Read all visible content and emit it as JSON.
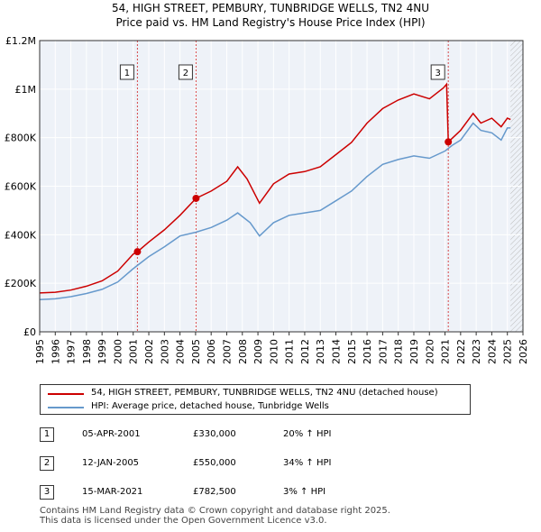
{
  "title": {
    "line1": "54, HIGH STREET, PEMBURY, TUNBRIDGE WELLS, TN2 4NU",
    "line2": "Price paid vs. HM Land Registry's House Price Index (HPI)"
  },
  "colors": {
    "property": "#cc0000",
    "hpi": "#6699cc",
    "grid": "#dddddd",
    "background": "#eef2f8",
    "marker": "#cc0000"
  },
  "chart_data": {
    "type": "line",
    "xlim": [
      1995,
      2026
    ],
    "ylim": [
      0,
      1200000
    ],
    "x_ticks": [
      "1995",
      "1996",
      "1997",
      "1998",
      "1999",
      "2000",
      "2001",
      "2002",
      "2003",
      "2004",
      "2005",
      "2006",
      "2007",
      "2008",
      "2009",
      "2010",
      "2011",
      "2012",
      "2013",
      "2014",
      "2015",
      "2016",
      "2017",
      "2018",
      "2019",
      "2020",
      "2021",
      "2022",
      "2023",
      "2024",
      "2025",
      "2026"
    ],
    "y_ticks": [
      {
        "value": 0,
        "label": "£0"
      },
      {
        "value": 200000,
        "label": "£200K"
      },
      {
        "value": 400000,
        "label": "£400K"
      },
      {
        "value": 600000,
        "label": "£600K"
      },
      {
        "value": 800000,
        "label": "£800K"
      },
      {
        "value": 1000000,
        "label": "£1M"
      },
      {
        "value": 1200000,
        "label": "£1.2M"
      }
    ],
    "series": [
      {
        "name": "54, HIGH STREET, PEMBURY, TUNBRIDGE WELLS, TN2 4NU (detached house)",
        "color": "#cc0000",
        "points": [
          [
            1995,
            160000
          ],
          [
            1996,
            163000
          ],
          [
            1997,
            172000
          ],
          [
            1998,
            188000
          ],
          [
            1999,
            210000
          ],
          [
            2000,
            250000
          ],
          [
            2001,
            320000
          ],
          [
            2001.27,
            330000
          ],
          [
            2002,
            370000
          ],
          [
            2003,
            420000
          ],
          [
            2004,
            480000
          ],
          [
            2005.03,
            550000
          ],
          [
            2006,
            580000
          ],
          [
            2007,
            620000
          ],
          [
            2007.7,
            680000
          ],
          [
            2008.3,
            630000
          ],
          [
            2009.1,
            530000
          ],
          [
            2010,
            610000
          ],
          [
            2011,
            650000
          ],
          [
            2012,
            660000
          ],
          [
            2013,
            680000
          ],
          [
            2014,
            730000
          ],
          [
            2015,
            780000
          ],
          [
            2016,
            860000
          ],
          [
            2017,
            920000
          ],
          [
            2018,
            955000
          ],
          [
            2019,
            980000
          ],
          [
            2020,
            960000
          ],
          [
            2020.9,
            1005000
          ],
          [
            2021.1,
            1020000
          ],
          [
            2021.21,
            782500
          ],
          [
            2022,
            830000
          ],
          [
            2022.8,
            900000
          ],
          [
            2023.3,
            860000
          ],
          [
            2024,
            880000
          ],
          [
            2024.6,
            845000
          ],
          [
            2025,
            880000
          ],
          [
            2025.2,
            875000
          ]
        ]
      },
      {
        "name": "HPI: Average price, detached house, Tunbridge Wells",
        "color": "#6699cc",
        "points": [
          [
            1995,
            133000
          ],
          [
            1996,
            136000
          ],
          [
            1997,
            145000
          ],
          [
            1998,
            158000
          ],
          [
            1999,
            175000
          ],
          [
            2000,
            205000
          ],
          [
            2001,
            260000
          ],
          [
            2002,
            310000
          ],
          [
            2003,
            350000
          ],
          [
            2004,
            395000
          ],
          [
            2005,
            410000
          ],
          [
            2006,
            430000
          ],
          [
            2007,
            460000
          ],
          [
            2007.7,
            490000
          ],
          [
            2008.5,
            450000
          ],
          [
            2009.1,
            395000
          ],
          [
            2010,
            450000
          ],
          [
            2011,
            480000
          ],
          [
            2012,
            490000
          ],
          [
            2013,
            500000
          ],
          [
            2014,
            540000
          ],
          [
            2015,
            580000
          ],
          [
            2016,
            640000
          ],
          [
            2017,
            690000
          ],
          [
            2018,
            710000
          ],
          [
            2019,
            725000
          ],
          [
            2020,
            715000
          ],
          [
            2021,
            745000
          ],
          [
            2021.5,
            770000
          ],
          [
            2022,
            790000
          ],
          [
            2022.8,
            860000
          ],
          [
            2023.3,
            830000
          ],
          [
            2024,
            820000
          ],
          [
            2024.6,
            790000
          ],
          [
            2025,
            840000
          ],
          [
            2025.2,
            840000
          ]
        ]
      }
    ],
    "sales": [
      {
        "label": "1",
        "x": 2001.27,
        "value": 330000
      },
      {
        "label": "2",
        "x": 2005.03,
        "value": 550000
      },
      {
        "label": "3",
        "x": 2021.21,
        "value": 782500
      }
    ],
    "hatch_from": 2025.2
  },
  "legend": {
    "property_label": "54, HIGH STREET, PEMBURY, TUNBRIDGE WELLS, TN2 4NU (detached house)",
    "hpi_label": "HPI: Average price, detached house, Tunbridge Wells"
  },
  "sales_table": [
    {
      "num": "1",
      "date": "05-APR-2001",
      "price": "£330,000",
      "hpi": "20% ↑ HPI"
    },
    {
      "num": "2",
      "date": "12-JAN-2005",
      "price": "£550,000",
      "hpi": "34% ↑ HPI"
    },
    {
      "num": "3",
      "date": "15-MAR-2021",
      "price": "£782,500",
      "hpi": "3% ↑ HPI"
    }
  ],
  "footer": {
    "line1": "Contains HM Land Registry data © Crown copyright and database right 2025.",
    "line2": "This data is licensed under the Open Government Licence v3.0."
  }
}
